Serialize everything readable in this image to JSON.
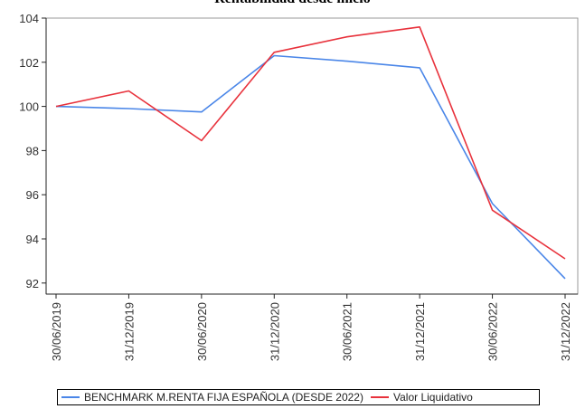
{
  "chart_data": {
    "type": "line",
    "title": "Rentabilidad desde inicio",
    "xlabel": "",
    "ylabel": "",
    "categories": [
      "30/06/2019",
      "31/12/2019",
      "30/06/2020",
      "31/12/2020",
      "30/06/2021",
      "31/12/2021",
      "30/06/2022",
      "31/12/2022"
    ],
    "series": [
      {
        "name": "BENCHMARK M.RENTA FIJA ESPAÑOLA (DESDE 2022)",
        "color": "#4a86e8",
        "values": [
          100.0,
          99.9,
          99.75,
          102.3,
          102.05,
          101.75,
          95.6,
          92.2
        ]
      },
      {
        "name": "Valor Liquidativo",
        "color": "#e8323c",
        "values": [
          100.0,
          100.7,
          98.45,
          102.45,
          103.15,
          103.6,
          95.3,
          93.1
        ]
      }
    ],
    "ylim": [
      91.5,
      104
    ],
    "yticks": [
      92,
      94,
      96,
      98,
      100,
      102,
      104
    ],
    "grid": false,
    "legend_position": "bottom"
  }
}
